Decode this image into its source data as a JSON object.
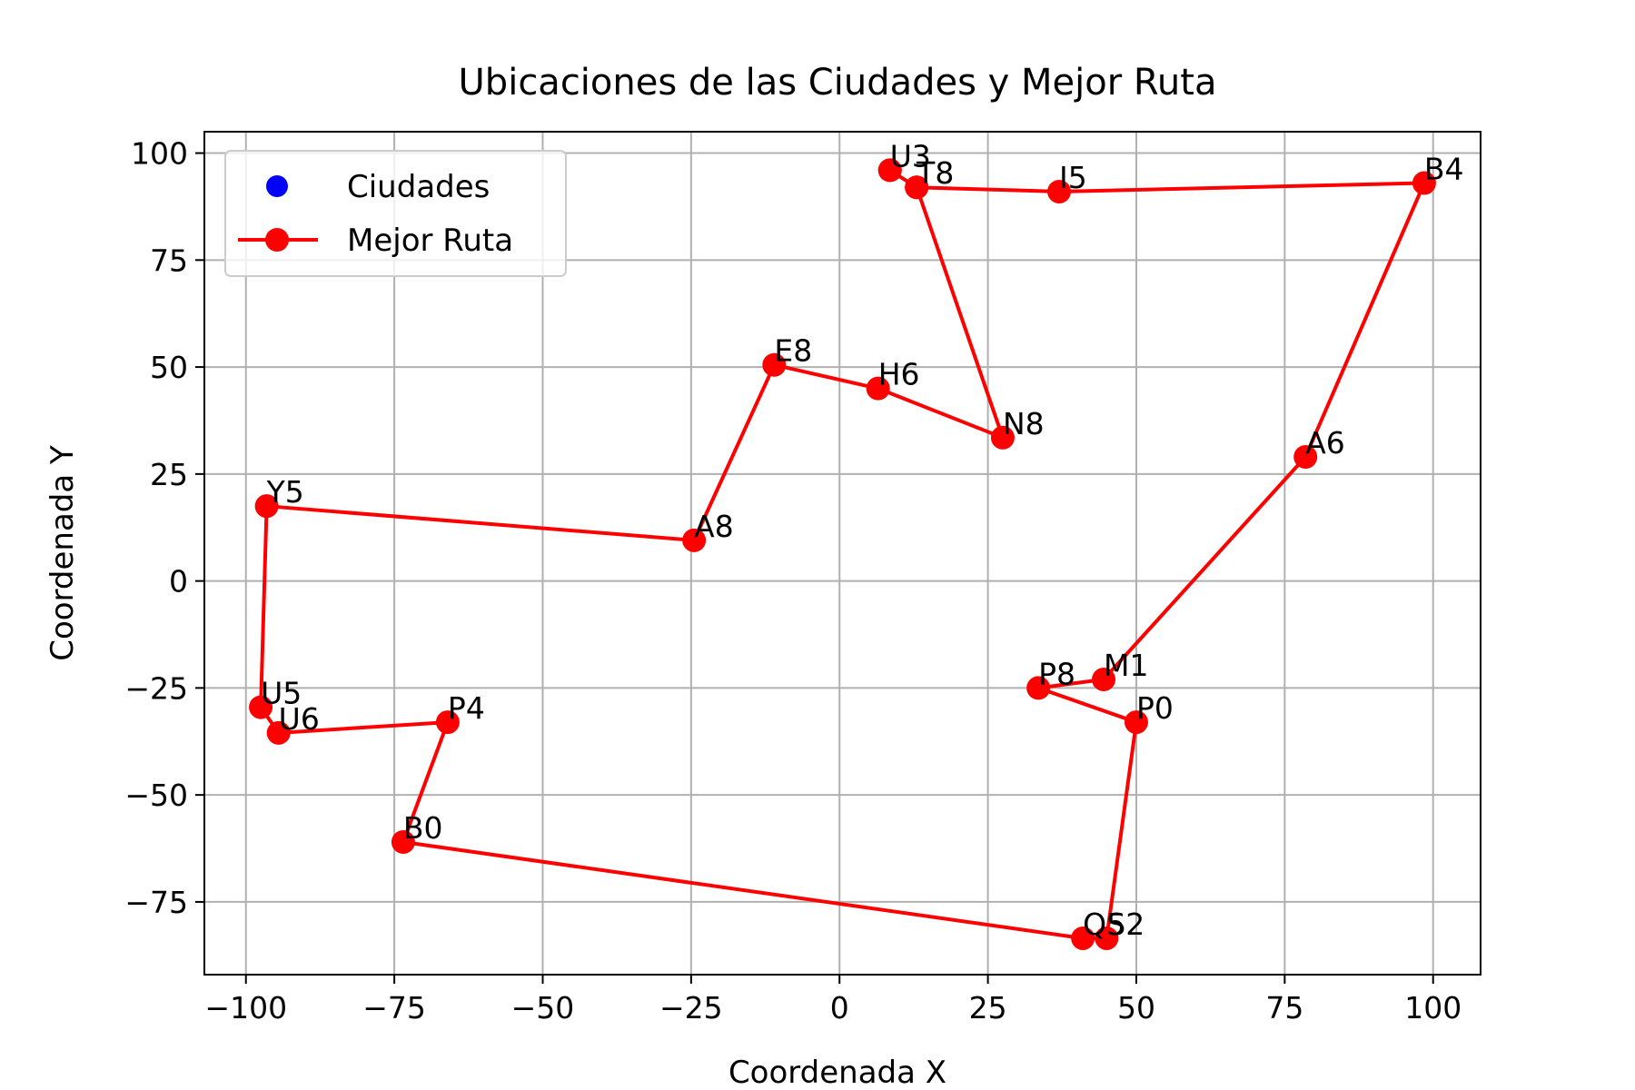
{
  "chart_data": {
    "type": "line",
    "title": "Ubicaciones de las Ciudades y Mejor Ruta",
    "xlabel": "Coordenada X",
    "ylabel": "Coordenada Y",
    "xlim": [
      -107,
      108
    ],
    "ylim": [
      -92,
      105
    ],
    "xticks": [
      -100,
      -75,
      -50,
      -25,
      0,
      25,
      50,
      75,
      100
    ],
    "yticks": [
      -75,
      -50,
      -25,
      0,
      25,
      50,
      75,
      100
    ],
    "xtick_labels": [
      "−100",
      "−75",
      "−50",
      "−25",
      "0",
      "25",
      "50",
      "75",
      "100"
    ],
    "ytick_labels": [
      "−75",
      "−50",
      "−25",
      "0",
      "25",
      "50",
      "75",
      "100"
    ],
    "grid": true,
    "legend_position": "upper-left",
    "colors": {
      "cities": "#0000ff",
      "route": "#ff0000"
    },
    "cities": [
      {
        "name": "U3",
        "x": 8.5,
        "y": 96
      },
      {
        "name": "T8",
        "x": 13,
        "y": 92
      },
      {
        "name": "I5",
        "x": 37,
        "y": 91
      },
      {
        "name": "B4",
        "x": 98.5,
        "y": 93
      },
      {
        "name": "A6",
        "x": 78.5,
        "y": 29
      },
      {
        "name": "M1",
        "x": 44.5,
        "y": -23
      },
      {
        "name": "P8",
        "x": 33.5,
        "y": -25
      },
      {
        "name": "P0",
        "x": 50,
        "y": -33
      },
      {
        "name": "S2",
        "x": 45,
        "y": -83.5
      },
      {
        "name": "Q5",
        "x": 41,
        "y": -83.5
      },
      {
        "name": "B0",
        "x": -73.5,
        "y": -61
      },
      {
        "name": "P4",
        "x": -66,
        "y": -33
      },
      {
        "name": "U6",
        "x": -94.5,
        "y": -35.5
      },
      {
        "name": "U5",
        "x": -97.5,
        "y": -29.5
      },
      {
        "name": "Y5",
        "x": -96.5,
        "y": 17.5
      },
      {
        "name": "A8",
        "x": -24.5,
        "y": 9.5
      },
      {
        "name": "E8",
        "x": -11,
        "y": 50.5
      },
      {
        "name": "H6",
        "x": 6.5,
        "y": 45
      },
      {
        "name": "N8",
        "x": 27.5,
        "y": 33.5
      }
    ],
    "series": [
      {
        "name": "Ciudades",
        "type": "scatter",
        "x": [
          8.5,
          13,
          37,
          98.5,
          78.5,
          44.5,
          33.5,
          50,
          45,
          41,
          -73.5,
          -66,
          -94.5,
          -97.5,
          -96.5,
          -24.5,
          -11,
          6.5,
          27.5
        ],
        "y": [
          96,
          92,
          91,
          93,
          29,
          -23,
          -25,
          -33,
          -83.5,
          -83.5,
          -61,
          -33,
          -35.5,
          -29.5,
          17.5,
          9.5,
          50.5,
          45,
          33.5
        ]
      },
      {
        "name": "Mejor Ruta",
        "type": "line",
        "x": [
          8.5,
          13,
          37,
          98.5,
          78.5,
          44.5,
          33.5,
          50,
          45,
          41,
          -73.5,
          -66,
          -94.5,
          -97.5,
          -96.5,
          -24.5,
          -11,
          6.5,
          27.5,
          13,
          8.5
        ],
        "y": [
          96,
          92,
          91,
          93,
          29,
          -23,
          -25,
          -33,
          -83.5,
          -83.5,
          -61,
          -33,
          -35.5,
          -29.5,
          17.5,
          9.5,
          50.5,
          45,
          33.5,
          92,
          96
        ]
      }
    ]
  }
}
